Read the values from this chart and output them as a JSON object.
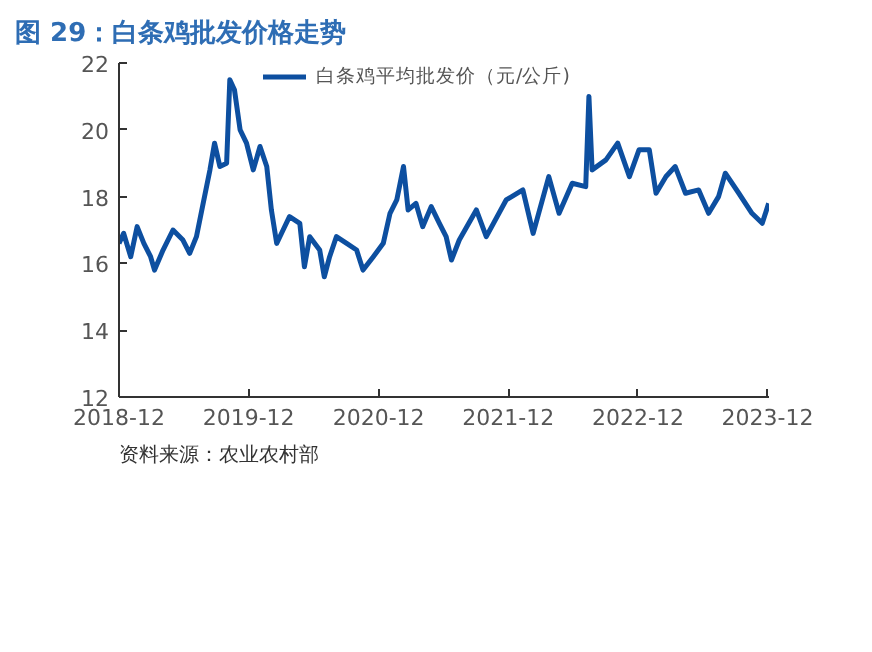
{
  "chart_data": {
    "type": "line",
    "title": "图 29：白条鸡批发价格走势",
    "annotations": [
      "资料来源：农业农村部"
    ],
    "x": [
      "2018-12-01",
      "2018-12-14",
      "2019-01-03",
      "2019-01-21",
      "2019-02-09",
      "2019-02-28",
      "2019-03-11",
      "2019-04-04",
      "2019-05-02",
      "2019-05-30",
      "2019-06-18",
      "2019-07-07",
      "2019-07-26",
      "2019-08-14",
      "2019-08-27",
      "2019-09-11",
      "2019-09-30",
      "2019-10-09",
      "2019-10-22",
      "2019-11-07",
      "2019-11-25",
      "2019-12-14",
      "2020-01-02",
      "2020-01-21",
      "2020-02-03",
      "2020-02-18",
      "2020-03-07",
      "2020-03-25",
      "2020-04-23",
      "2020-05-06",
      "2020-05-21",
      "2020-06-18",
      "2020-07-01",
      "2020-07-16",
      "2020-08-04",
      "2020-09-02",
      "2020-09-30",
      "2020-10-18",
      "2020-11-16",
      "2020-12-14",
      "2021-01-02",
      "2021-01-21",
      "2021-02-09",
      "2021-02-22",
      "2021-03-16",
      "2021-04-04",
      "2021-04-28",
      "2021-05-21",
      "2021-06-09",
      "2021-06-24",
      "2021-07-16",
      "2021-09-02",
      "2021-09-30",
      "2021-11-25",
      "2022-01-11",
      "2022-02-09",
      "2022-03-25",
      "2022-04-23",
      "2022-05-30",
      "2022-07-07",
      "2022-07-16",
      "2022-07-25",
      "2022-09-02",
      "2022-10-05",
      "2022-11-07",
      "2022-12-04",
      "2023-01-02",
      "2023-01-21",
      "2023-02-18",
      "2023-03-16",
      "2023-04-14",
      "2023-05-21",
      "2023-06-18",
      "2023-07-16",
      "2023-08-04",
      "2023-09-11",
      "2023-10-18",
      "2023-11-16",
      "2023-12-04"
    ],
    "series": [
      {
        "name": "白条鸡平均批发价（元/公斤)",
        "color": "#0d4fa0",
        "values": [
          16.6,
          16.9,
          16.2,
          17.1,
          16.6,
          16.2,
          15.8,
          16.4,
          17.0,
          16.7,
          16.3,
          16.8,
          17.8,
          18.8,
          19.6,
          18.9,
          19.0,
          21.5,
          21.2,
          20.0,
          19.6,
          18.8,
          19.5,
          18.9,
          17.6,
          16.6,
          17.0,
          17.4,
          17.2,
          15.9,
          16.8,
          16.4,
          15.6,
          16.2,
          16.8,
          16.6,
          16.4,
          15.8,
          16.2,
          16.6,
          17.5,
          17.9,
          18.9,
          17.6,
          17.8,
          17.1,
          17.7,
          17.2,
          16.8,
          16.1,
          16.7,
          17.6,
          16.8,
          17.9,
          18.2,
          16.9,
          18.6,
          17.5,
          18.4,
          18.3,
          21.0,
          18.8,
          19.1,
          19.6,
          18.6,
          19.4,
          19.4,
          18.1,
          18.6,
          18.9,
          18.1,
          18.2,
          17.5,
          18.0,
          18.7,
          18.1,
          17.5,
          17.2,
          17.8
        ]
      }
    ],
    "xlim": [
      "2018-12-01",
      "2023-12-05"
    ],
    "xticks": [
      "2018-12",
      "2019-12",
      "2020-12",
      "2021-12",
      "2022-12",
      "2023-12"
    ],
    "ylim": [
      12,
      22
    ],
    "yticks": [
      12,
      14,
      16,
      18,
      20,
      22
    ],
    "grid": false,
    "legend": "top",
    "marker": "none",
    "line_style": "solid"
  }
}
